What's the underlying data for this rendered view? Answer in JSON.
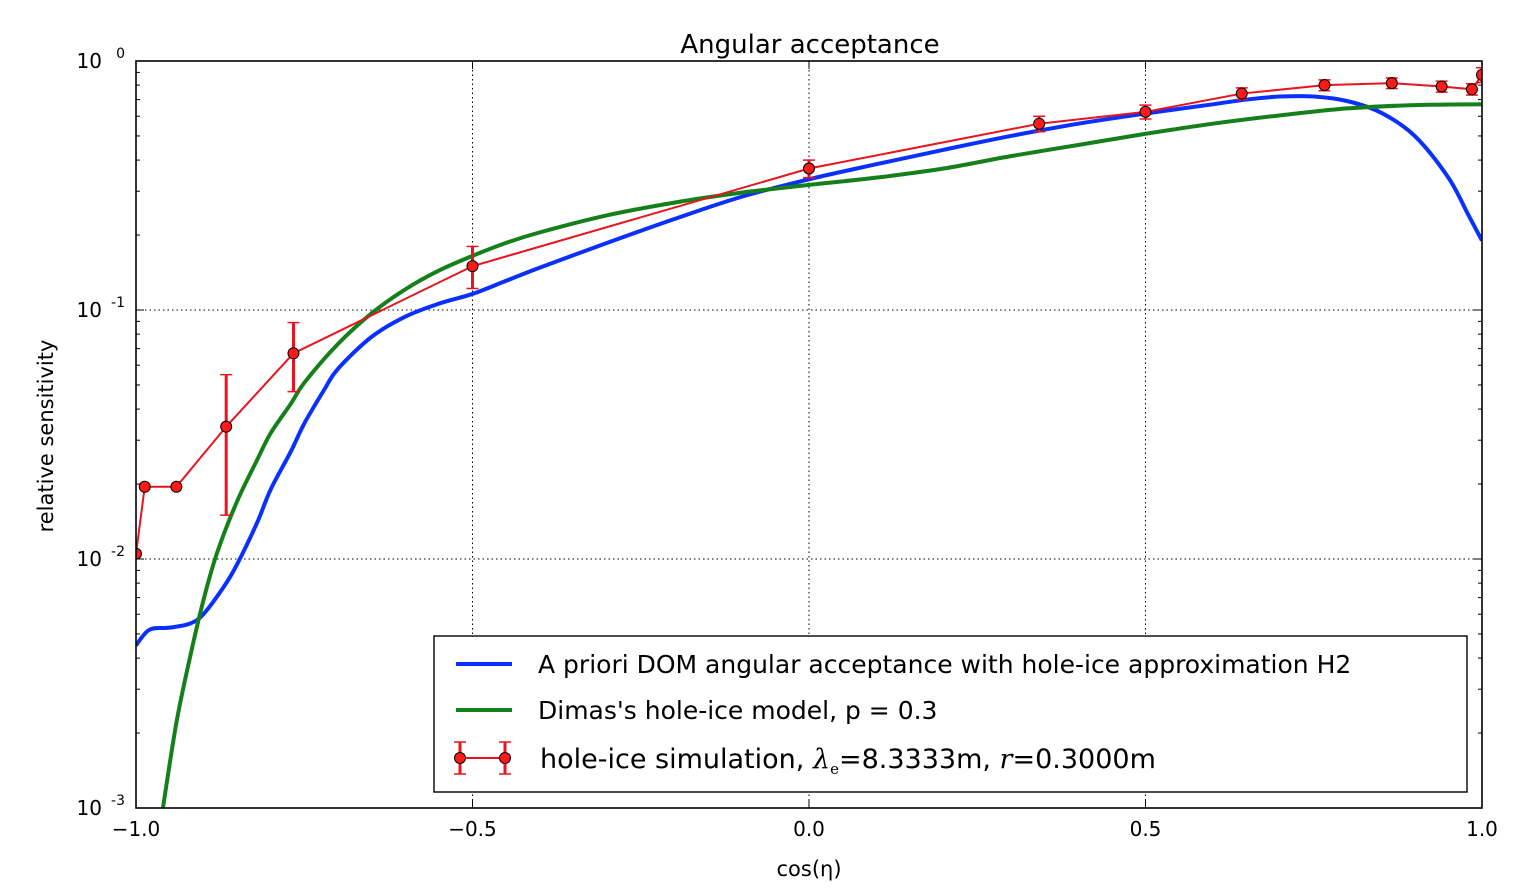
{
  "chart_data": {
    "type": "line",
    "title": "Angular acceptance",
    "xlabel": "cos(η)",
    "ylabel": "relative sensitivity",
    "xlim": [
      -1.0,
      1.0
    ],
    "ylim": [
      0.001,
      1.0
    ],
    "yscale": "log",
    "grid": true,
    "legend_position": "lower-right",
    "x_ticks": [
      "−1.0",
      "−0.5",
      "0.0",
      "0.5",
      "1.0"
    ],
    "y_ticks": [
      {
        "base": "10",
        "exp": "-3"
      },
      {
        "base": "10",
        "exp": "-2"
      },
      {
        "base": "10",
        "exp": "-1"
      },
      {
        "base": "10",
        "exp": "0"
      }
    ],
    "series": [
      {
        "name": "A priori DOM angular acceptance with hole-ice approximation H2",
        "color": "#0a30ff",
        "kind": "line",
        "x": [
          -1.0,
          -0.98,
          -0.95,
          -0.92,
          -0.9,
          -0.87,
          -0.85,
          -0.82,
          -0.8,
          -0.77,
          -0.75,
          -0.72,
          -0.7,
          -0.65,
          -0.6,
          -0.55,
          -0.5,
          -0.45,
          -0.4,
          -0.3,
          -0.2,
          -0.1,
          0.0,
          0.1,
          0.2,
          0.3,
          0.4,
          0.5,
          0.6,
          0.65,
          0.7,
          0.75,
          0.8,
          0.85,
          0.9,
          0.95,
          0.98,
          1.0
        ],
        "y": [
          0.0045,
          0.0052,
          0.0053,
          0.0055,
          0.006,
          0.0077,
          0.0095,
          0.014,
          0.019,
          0.027,
          0.035,
          0.048,
          0.058,
          0.078,
          0.094,
          0.106,
          0.116,
          0.131,
          0.148,
          0.186,
          0.232,
          0.285,
          0.335,
          0.385,
          0.44,
          0.5,
          0.56,
          0.615,
          0.67,
          0.7,
          0.72,
          0.72,
          0.69,
          0.62,
          0.5,
          0.34,
          0.24,
          0.19
        ]
      },
      {
        "name": "Dimas's hole-ice model, p = 0.3",
        "color": "#15801a",
        "kind": "line",
        "x": [
          -0.96,
          -0.94,
          -0.92,
          -0.9,
          -0.88,
          -0.85,
          -0.82,
          -0.8,
          -0.77,
          -0.75,
          -0.7,
          -0.65,
          -0.6,
          -0.55,
          -0.5,
          -0.45,
          -0.4,
          -0.3,
          -0.2,
          -0.1,
          0.0,
          0.1,
          0.2,
          0.3,
          0.4,
          0.5,
          0.6,
          0.7,
          0.8,
          0.9,
          1.0
        ],
        "y": [
          0.001,
          0.0022,
          0.004,
          0.0068,
          0.0105,
          0.017,
          0.025,
          0.032,
          0.042,
          0.051,
          0.073,
          0.097,
          0.121,
          0.144,
          0.165,
          0.186,
          0.205,
          0.24,
          0.27,
          0.296,
          0.318,
          0.34,
          0.37,
          0.415,
          0.46,
          0.51,
          0.56,
          0.605,
          0.645,
          0.665,
          0.67
        ]
      },
      {
        "name": "hole-ice simulation, λ_e=8.3333m, r=0.3000m",
        "color": "#e8141e",
        "marker_color": "#ff1a1a",
        "kind": "errorbar",
        "x": [
          -1.0,
          -0.987,
          -0.94,
          -0.866,
          -0.766,
          -0.5,
          0.0,
          0.342,
          0.5,
          0.643,
          0.766,
          0.866,
          0.94,
          0.985,
          1.0
        ],
        "y": [
          0.0105,
          0.0195,
          0.0195,
          0.034,
          0.067,
          0.15,
          0.37,
          0.56,
          0.625,
          0.74,
          0.8,
          0.815,
          0.79,
          0.77,
          0.88
        ],
        "yerr_low": [
          0.0,
          0.0,
          0.0,
          0.019,
          0.02,
          0.028,
          0.03,
          0.04,
          0.04,
          0.04,
          0.04,
          0.04,
          0.04,
          0.04,
          0.06
        ],
        "yerr_high": [
          0.0,
          0.0,
          0.0,
          0.021,
          0.022,
          0.03,
          0.03,
          0.04,
          0.04,
          0.04,
          0.04,
          0.04,
          0.04,
          0.04,
          0.06
        ]
      }
    ],
    "legend": [
      {
        "label": "A priori DOM angular acceptance with hole-ice approximation H2"
      },
      {
        "label": "Dimas's hole-ice model, p = 0.3"
      },
      {
        "label_prefix": "hole-ice simulation, ",
        "symbol1": "λ",
        "symbol1_sub": "e",
        "value1": "=8.3333m, ",
        "symbol2": "r",
        "value2": "=0.3000m"
      }
    ]
  }
}
